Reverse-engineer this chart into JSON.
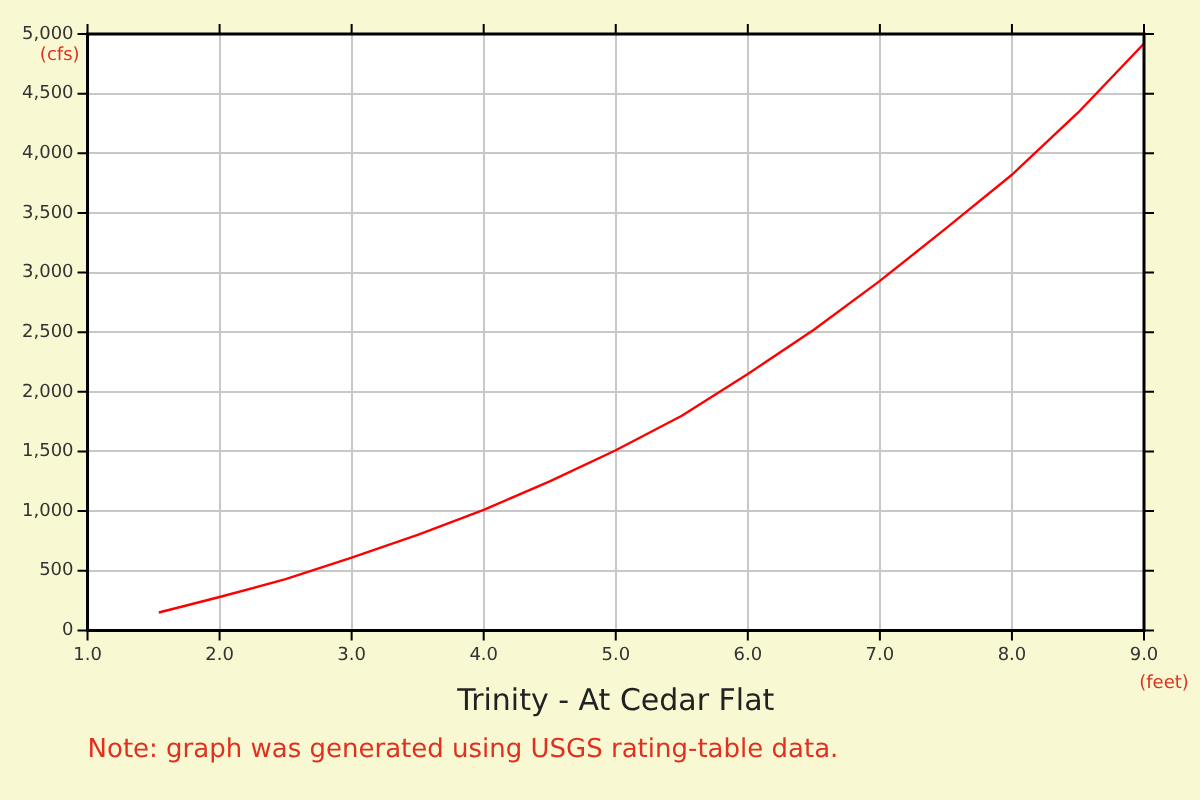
{
  "chart_data": {
    "type": "line",
    "title": "Trinity - At Cedar Flat",
    "xlabel": "(feet)",
    "ylabel": "(cfs)",
    "annotations": [
      "Note: graph was generated using USGS rating-table data."
    ],
    "x": [
      1.54,
      2.0,
      2.5,
      3.0,
      3.5,
      4.0,
      4.5,
      5.0,
      5.5,
      6.0,
      6.5,
      7.0,
      7.5,
      8.0,
      8.5,
      9.0
    ],
    "series": [
      {
        "color": "#ff0000",
        "values": [
          150,
          280,
          430,
          610,
          800,
          1010,
          1250,
          1510,
          1800,
          2150,
          2520,
          2930,
          3370,
          3820,
          4340,
          4920
        ]
      }
    ],
    "xlim": [
      1,
      9
    ],
    "xticks": [
      {
        "value": 1,
        "label": "1.0"
      },
      {
        "value": 2,
        "label": "2.0"
      },
      {
        "value": 3,
        "label": "3.0"
      },
      {
        "value": 4,
        "label": "4.0"
      },
      {
        "value": 5,
        "label": "5.0"
      },
      {
        "value": 6,
        "label": "6.0"
      },
      {
        "value": 7,
        "label": "7.0"
      },
      {
        "value": 8,
        "label": "8.0"
      },
      {
        "value": 9,
        "label": "9.0"
      }
    ],
    "ylim": [
      0,
      5000
    ],
    "yticks": [
      0,
      500,
      {
        "value": 1000,
        "label": "1,000"
      },
      {
        "value": 1500,
        "label": "1,500"
      },
      {
        "value": 2000,
        "label": "2,000"
      },
      {
        "value": 2500,
        "label": "2,500"
      },
      {
        "value": 3000,
        "label": "3,000"
      },
      {
        "value": 3500,
        "label": "3,500"
      },
      {
        "value": 4000,
        "label": "4,000"
      },
      {
        "value": 4500,
        "label": "4,500"
      },
      {
        "value": 5000,
        "label": "5,000"
      }
    ],
    "grid": true,
    "legend": false,
    "marker": "none",
    "line_style": "solid"
  }
}
